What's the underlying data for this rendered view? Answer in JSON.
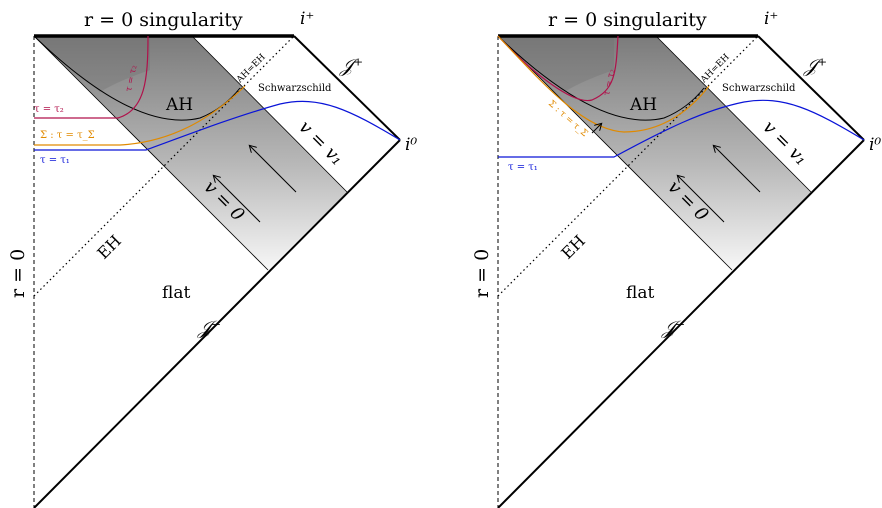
{
  "panels": [
    {
      "id": "left",
      "labels": {
        "singularity": "r = 0 singularity",
        "i_plus": "i⁺",
        "scri_plus": "𝒥⁺",
        "i_zero": "i⁰",
        "scri_minus": "𝒥⁻",
        "r_zero": "r = 0",
        "ah_eq_eh": "AH=EH",
        "schwarzschild": "Schwarzschild",
        "ah": "AH",
        "eh": "EH",
        "v_one": "v = v₁",
        "v_zero": "v = 0",
        "flat": "flat",
        "tau_two_horizontal": "τ = τ₂",
        "tau_two_vertical": "τ = τ₂",
        "sigma": "Σ : τ = τ_Σ",
        "tau_one": "τ = τ₁"
      }
    },
    {
      "id": "right",
      "labels": {
        "singularity": "r = 0 singularity",
        "i_plus": "i⁺",
        "scri_plus": "𝒥⁺",
        "i_zero": "i⁰",
        "scri_minus": "𝒥⁻",
        "r_zero": "r = 0",
        "ah_eq_eh": "AH=EH",
        "schwarzschild": "Schwarzschild",
        "ah": "AH",
        "eh": "EH",
        "v_one": "v = v₁",
        "v_zero": "v = 0",
        "flat": "flat",
        "tau_two_vertical": "τ = τ₂",
        "sigma": "Σ : τ = τ_Σ",
        "tau_one": "τ = τ₁"
      }
    }
  ],
  "colors": {
    "tau_two": "#b0104a",
    "sigma": "#e08a00",
    "tau_one": "#0a14d8",
    "shell_dark": "#7d7d7d",
    "shell_light": "#f2f2f2"
  }
}
